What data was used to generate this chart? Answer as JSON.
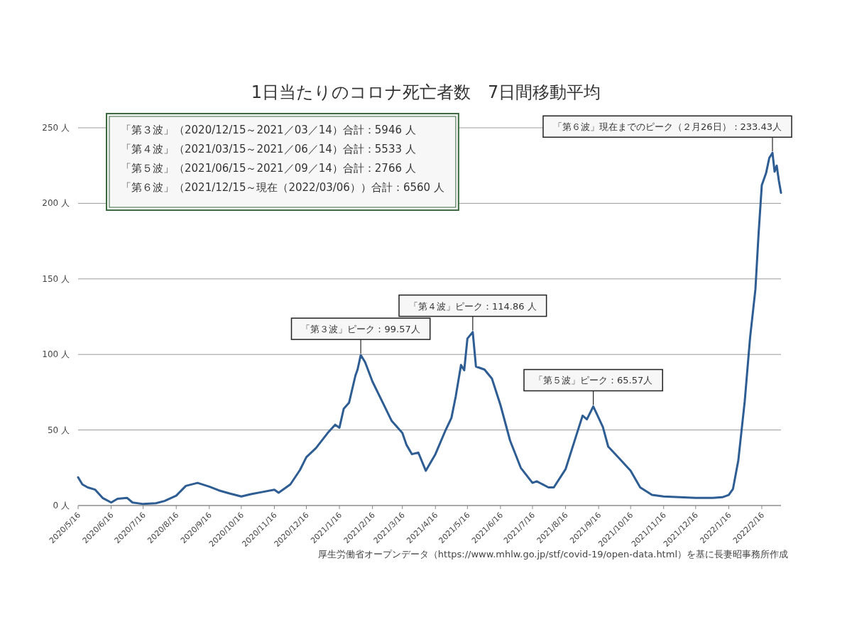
{
  "chart_data": {
    "type": "line",
    "title": "1日当たりのコロナ死亡者数　7日間移動平均",
    "color": "#2e5d93",
    "x": [
      "2020-05-16",
      "2020-05-20",
      "2020-05-25",
      "2020-06-01",
      "2020-06-08",
      "2020-06-16",
      "2020-06-22",
      "2020-07-01",
      "2020-07-06",
      "2020-07-16",
      "2020-07-28",
      "2020-08-05",
      "2020-08-16",
      "2020-08-25",
      "2020-09-05",
      "2020-09-16",
      "2020-09-25",
      "2020-10-05",
      "2020-10-16",
      "2020-10-25",
      "2020-11-05",
      "2020-11-16",
      "2020-11-20",
      "2020-12-01",
      "2020-12-10",
      "2020-12-16",
      "2020-12-25",
      "2021-01-05",
      "2021-01-12",
      "2021-01-16",
      "2021-01-20",
      "2021-01-25",
      "2021-01-31",
      "2021-02-02",
      "2021-02-05",
      "2021-02-09",
      "2021-02-16",
      "2021-02-25",
      "2021-03-06",
      "2021-03-16",
      "2021-03-20",
      "2021-03-25",
      "2021-03-31",
      "2021-04-07",
      "2021-04-16",
      "2021-04-25",
      "2021-05-01",
      "2021-05-05",
      "2021-05-10",
      "2021-05-13",
      "2021-05-16",
      "2021-05-21",
      "2021-05-24",
      "2021-06-01",
      "2021-06-08",
      "2021-06-16",
      "2021-06-25",
      "2021-07-05",
      "2021-07-16",
      "2021-07-20",
      "2021-07-31",
      "2021-08-05",
      "2021-08-16",
      "2021-08-25",
      "2021-09-01",
      "2021-09-05",
      "2021-09-11",
      "2021-09-20",
      "2021-09-25",
      "2021-10-05",
      "2021-10-16",
      "2021-10-25",
      "2021-11-05",
      "2021-11-16",
      "2021-12-01",
      "2021-12-16",
      "2022-01-01",
      "2022-01-10",
      "2022-01-16",
      "2022-01-20",
      "2022-01-25",
      "2022-01-31",
      "2022-02-05",
      "2022-02-10",
      "2022-02-13",
      "2022-02-16",
      "2022-02-20",
      "2022-02-23",
      "2022-02-26",
      "2022-02-28",
      "2022-03-02",
      "2022-03-04",
      "2022-03-06"
    ],
    "values": [
      18.7,
      14,
      12,
      10.5,
      5,
      2,
      4.5,
      5,
      2,
      1,
      1.5,
      3,
      6.5,
      13,
      15,
      12.5,
      10,
      8,
      6,
      7.5,
      9,
      10.5,
      8.5,
      14,
      23.5,
      32,
      38,
      48,
      53.5,
      51.5,
      64,
      68,
      86,
      90,
      99.57,
      95,
      82,
      69,
      56,
      48,
      40,
      34,
      35,
      23,
      34,
      49,
      58,
      72,
      93,
      89.5,
      110.5,
      114.86,
      92,
      90,
      84,
      66.5,
      43,
      25,
      15,
      16,
      12,
      12,
      24,
      44,
      59.5,
      57,
      65.57,
      52,
      39,
      31.5,
      23,
      12,
      7,
      6,
      5.5,
      5,
      5,
      5.5,
      7,
      11,
      30,
      69,
      111,
      143,
      180,
      212,
      220,
      230,
      233.43,
      221,
      225,
      215,
      207
    ],
    "xlim": [
      "2020-05-16",
      "2022-03-06"
    ],
    "xticks": [
      {
        "value": "2020-05-16",
        "label": "2020/5/16"
      },
      {
        "value": "2020-06-16",
        "label": "2020/6/16"
      },
      {
        "value": "2020-07-16",
        "label": "2020/7/16"
      },
      {
        "value": "2020-08-16",
        "label": "2020/8/16"
      },
      {
        "value": "2020-09-16",
        "label": "2020/9/16"
      },
      {
        "value": "2020-10-16",
        "label": "2020/10/16"
      },
      {
        "value": "2020-11-16",
        "label": "2020/11/16"
      },
      {
        "value": "2020-12-16",
        "label": "2020/12/16"
      },
      {
        "value": "2021-01-16",
        "label": "2021/1/16"
      },
      {
        "value": "2021-02-16",
        "label": "2021/2/16"
      },
      {
        "value": "2021-03-16",
        "label": "2021/3/16"
      },
      {
        "value": "2021-04-16",
        "label": "2021/4/16"
      },
      {
        "value": "2021-05-16",
        "label": "2021/5/16"
      },
      {
        "value": "2021-06-16",
        "label": "2021/6/16"
      },
      {
        "value": "2021-07-16",
        "label": "2021/7/16"
      },
      {
        "value": "2021-08-16",
        "label": "2021/8/16"
      },
      {
        "value": "2021-09-16",
        "label": "2021/9/16"
      },
      {
        "value": "2021-10-16",
        "label": "2021/10/16"
      },
      {
        "value": "2021-11-16",
        "label": "2021/11/16"
      },
      {
        "value": "2021-12-16",
        "label": "2021/12/16"
      },
      {
        "value": "2022-01-16",
        "label": "2022/1/16"
      },
      {
        "value": "2022-02-16",
        "label": "2022/2/16"
      }
    ],
    "ylim": [
      0,
      250
    ],
    "yticks": [
      {
        "value": 0,
        "label": "0 人"
      },
      {
        "value": 50,
        "label": "50 人"
      },
      {
        "value": 100,
        "label": "100 人"
      },
      {
        "value": 150,
        "label": "150 人"
      },
      {
        "value": 200,
        "label": "200 人"
      },
      {
        "value": 250,
        "label": "250 人"
      }
    ],
    "grid": "y",
    "annotations": [
      "「第３波」（2020/12/15～2021／03／14）合計：5946 人",
      "「第４波」（2021/03/15～2021／06／14）合計：5533 人",
      "「第５波」（2021/06/15～2021／09／14）合計：2766 人",
      "「第６波」（2021/12/15～現在（2022/03/06））合計：6560 人",
      {
        "text": "「第３波」ピーク：99.57人",
        "x": "2021-02-05",
        "y": 99.57
      },
      {
        "text": "「第４波」ピーク：114.86 人",
        "x": "2021-05-21",
        "y": 114.86
      },
      {
        "text": "「第５波」ピーク：65.57人",
        "x": "2021-09-11",
        "y": 65.57
      },
      {
        "text": "「第６波」現在までのピーク（２月26日）：233.43人",
        "x": "2022-02-26",
        "y": 233.43
      },
      "厚生労働省オープンデータ（https://www.mhlw.go.jp/stf/covid-19/open-data.html）を基に長妻昭事務所作成"
    ]
  }
}
